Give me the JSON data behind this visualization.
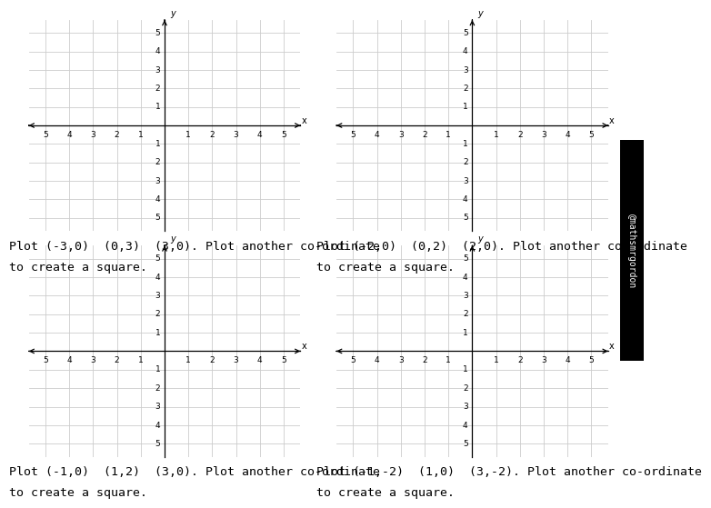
{
  "panels": [
    {
      "caption_line1": "Plot (-3,0)  (0,3)  (3,0). Plot another co-ordinate",
      "caption_line2": "to create a square."
    },
    {
      "caption_line1": "Plot (-2,0)  (0,2)  (2,0). Plot another co-ordinate",
      "caption_line2": "to create a square."
    },
    {
      "caption_line1": "Plot (-1,0)  (1,2)  (3,0). Plot another co-ordinate",
      "caption_line2": "to create a square."
    },
    {
      "caption_line1": "Plot (-1,-2)  (1,0)  (3,-2). Plot another co-ordinate",
      "caption_line2": "to create a square."
    }
  ],
  "ticks": [
    -5,
    -4,
    -3,
    -2,
    -1,
    1,
    2,
    3,
    4,
    5
  ],
  "xlim": [
    -5.7,
    5.7
  ],
  "ylim": [
    -5.7,
    5.7
  ],
  "grid_color": "#cccccc",
  "tick_fontsize": 6.5,
  "caption_fontsize": 9.5,
  "bg_color": "#ffffff",
  "watermark": "@mathsmrgordon",
  "wm_bg": "#000000",
  "wm_fg": "#ffffff"
}
